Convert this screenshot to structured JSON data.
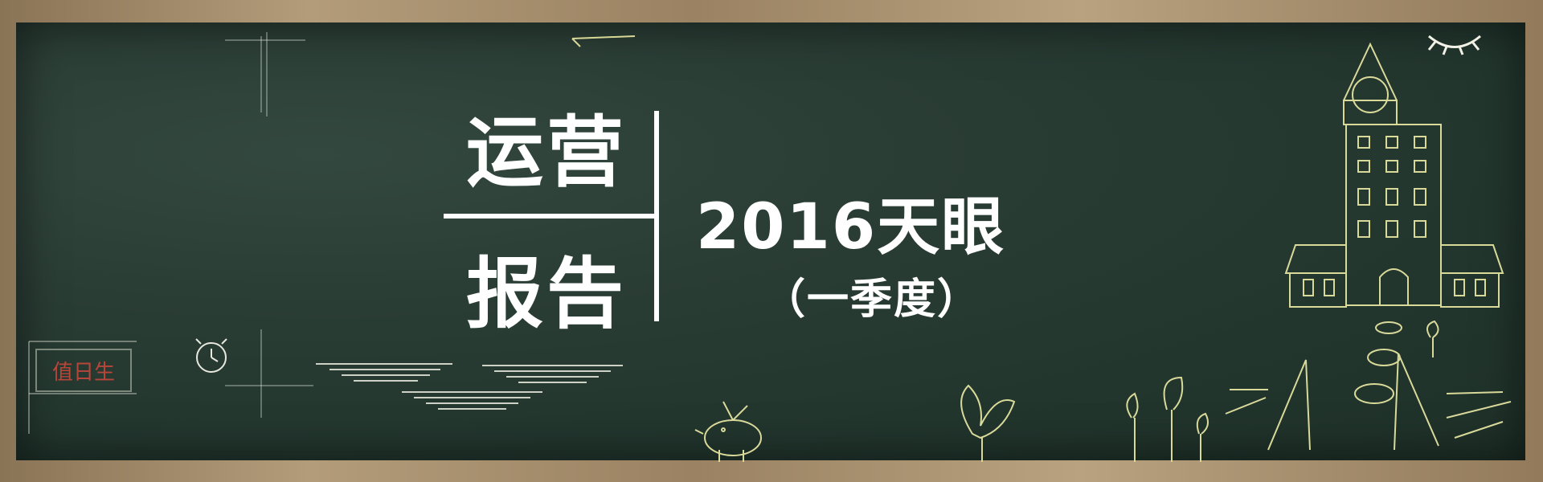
{
  "banner": {
    "title_top": "运营",
    "title_bottom": "报告",
    "subtitle": "2016天眼",
    "quarter": "（一季度）",
    "duty_label": "值日生"
  },
  "colors": {
    "board": "#2a3d35",
    "frame": "#a08a6a",
    "chalk": "#f3f3e6",
    "chalk_yellow": "#d8d896",
    "duty_red": "#b8453a"
  },
  "decorations": [
    "clock-icon",
    "building-illustration",
    "bird-illustration",
    "flowers-illustration",
    "sleeping-eye-icon",
    "book-illustration"
  ]
}
